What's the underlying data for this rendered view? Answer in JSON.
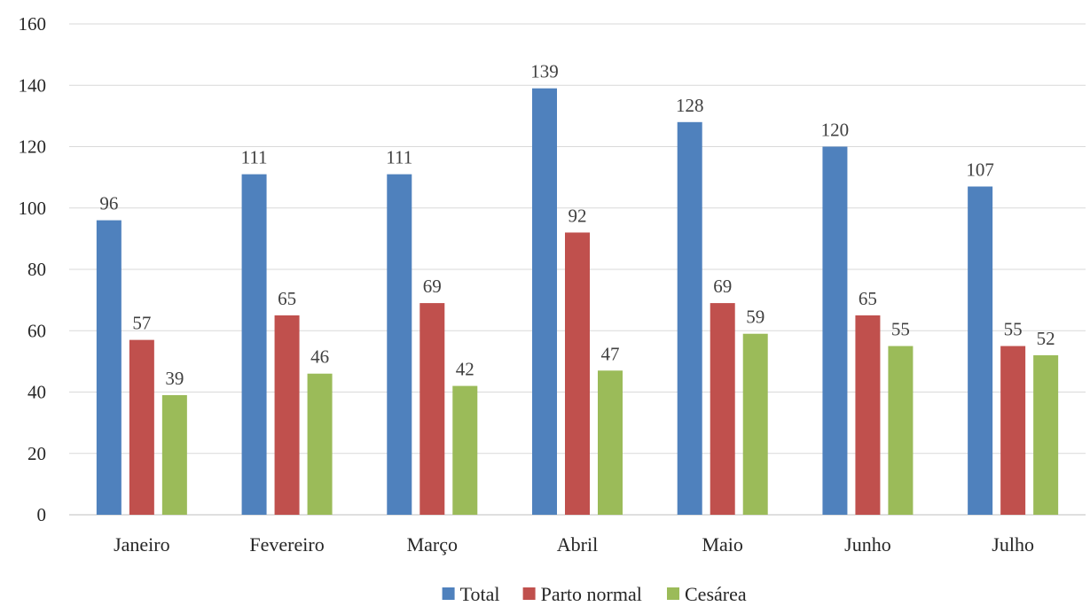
{
  "chart_data": {
    "type": "bar",
    "categories": [
      "Janeiro",
      "Fevereiro",
      "Março",
      "Abril",
      "Maio",
      "Junho",
      "Julho"
    ],
    "series": [
      {
        "name": "Total",
        "color": "#4f81bd",
        "values": [
          96,
          111,
          111,
          139,
          128,
          120,
          107
        ]
      },
      {
        "name": "Parto normal",
        "color": "#c0504d",
        "values": [
          57,
          65,
          69,
          92,
          69,
          65,
          55
        ]
      },
      {
        "name": "Cesárea",
        "color": "#9bbb59",
        "values": [
          39,
          46,
          42,
          47,
          59,
          55,
          52
        ]
      }
    ],
    "yticks": [
      "0",
      "20",
      "40",
      "60",
      "80",
      "100",
      "120",
      "140",
      "160"
    ],
    "ylim": [
      0,
      160
    ],
    "grid": true,
    "legend_position": "bottom"
  }
}
